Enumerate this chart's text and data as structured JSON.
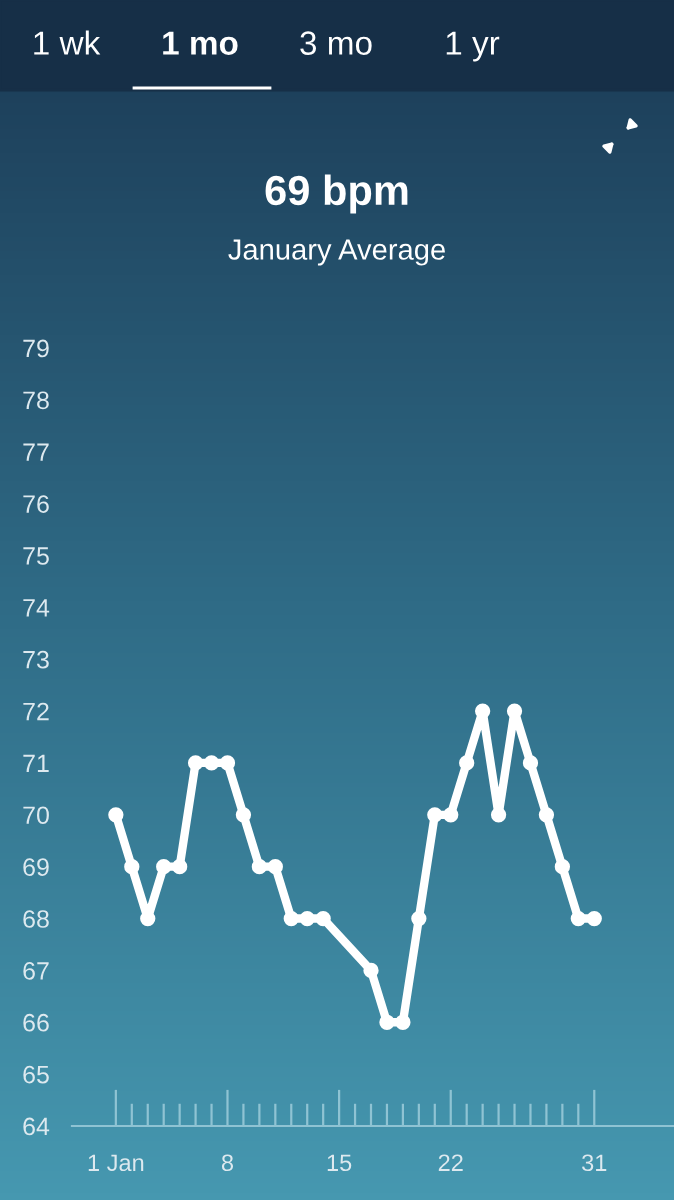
{
  "chart_data": {
    "type": "line",
    "title": "69 bpm",
    "subtitle": "January Average",
    "annotations": [
      "1 wk",
      "1 mo",
      "3 mo",
      "1 yr"
    ],
    "x": [
      1,
      2,
      3,
      4,
      5,
      6,
      7,
      8,
      9,
      10,
      11,
      12,
      13,
      14,
      15,
      16,
      17,
      18,
      19,
      20,
      21,
      22,
      23,
      24,
      25,
      26,
      27,
      28,
      29,
      30,
      31
    ],
    "series": [
      {
        "color": "#ffffff",
        "values": [
          70,
          69,
          68,
          69,
          69,
          71,
          71,
          71,
          70,
          69,
          69,
          68,
          68,
          68,
          null,
          null,
          67,
          66,
          66,
          68,
          70,
          70,
          71,
          72,
          70,
          72,
          71,
          70,
          69,
          68,
          68
        ]
      }
    ],
    "marker": "circle",
    "line_style": "solid",
    "xlim": [
      -1.75,
      36
    ],
    "xticks": [
      {
        "value": 1,
        "label": "1 Jan"
      },
      {
        "value": 2,
        "label": null
      },
      {
        "value": 3,
        "label": null
      },
      {
        "value": 4,
        "label": null
      },
      {
        "value": 5,
        "label": null
      },
      {
        "value": 6,
        "label": null
      },
      {
        "value": 7,
        "label": null
      },
      8,
      {
        "value": 9,
        "label": null
      },
      {
        "value": 10,
        "label": null
      },
      {
        "value": 11,
        "label": null
      },
      {
        "value": 12,
        "label": null
      },
      {
        "value": 13,
        "label": null
      },
      {
        "value": 14,
        "label": null
      },
      15,
      {
        "value": 16,
        "label": null
      },
      {
        "value": 17,
        "label": null
      },
      {
        "value": 18,
        "label": null
      },
      {
        "value": 19,
        "label": null
      },
      {
        "value": 20,
        "label": null
      },
      {
        "value": 21,
        "label": null
      },
      22,
      {
        "value": 23,
        "label": null
      },
      {
        "value": 24,
        "label": null
      },
      {
        "value": 25,
        "label": null
      },
      {
        "value": 26,
        "label": null
      },
      {
        "value": 27,
        "label": null
      },
      {
        "value": 28,
        "label": null
      },
      {
        "value": 29,
        "label": null
      },
      {
        "value": 30,
        "label": null
      },
      31
    ],
    "ylim": [
      64,
      79
    ],
    "yticks": [
      64,
      65,
      66,
      67,
      68,
      69,
      70,
      71,
      72,
      73,
      74,
      75,
      76,
      77,
      78,
      79
    ]
  }
}
